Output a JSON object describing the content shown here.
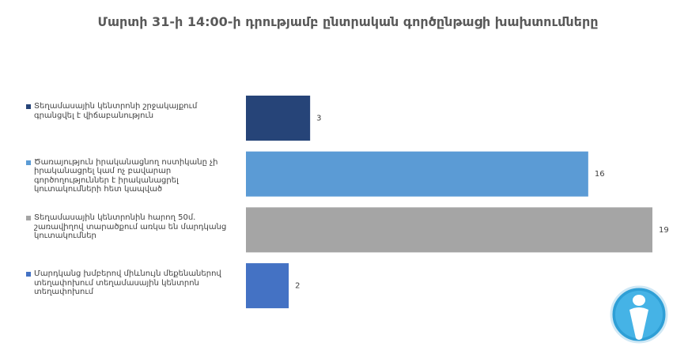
{
  "chart_data": {
    "type": "bar",
    "orientation": "horizontal",
    "title": "Մարտի 31-ի 14:00-ի դրությամբ ընտրական գործընթացի խախտումները",
    "categories": [
      "Տեղամասային կենտրոնի շրջակայքում գրանցվել է վիճաբանություն",
      "Ծառայություն իրականացնող ոստիկանը չի իրականացրել կամ ոչ բավարար գործողություններ է իրականացրել կուտակումների հետ կապված",
      "Տեղամասային կենտրոնին հարող 50մ. շառավիղով տարածքում առկա են մարդկանց կուտակումներ",
      "Մարդկանց խմբերով միևնույն մեքենաներով տեղափոխում տեղամասային կենտրոն տեղափոխում"
    ],
    "values": [
      3,
      16,
      19,
      2
    ],
    "colors": [
      "#264478",
      "#5b9bd5",
      "#a5a5a5",
      "#4472c4"
    ]
  }
}
